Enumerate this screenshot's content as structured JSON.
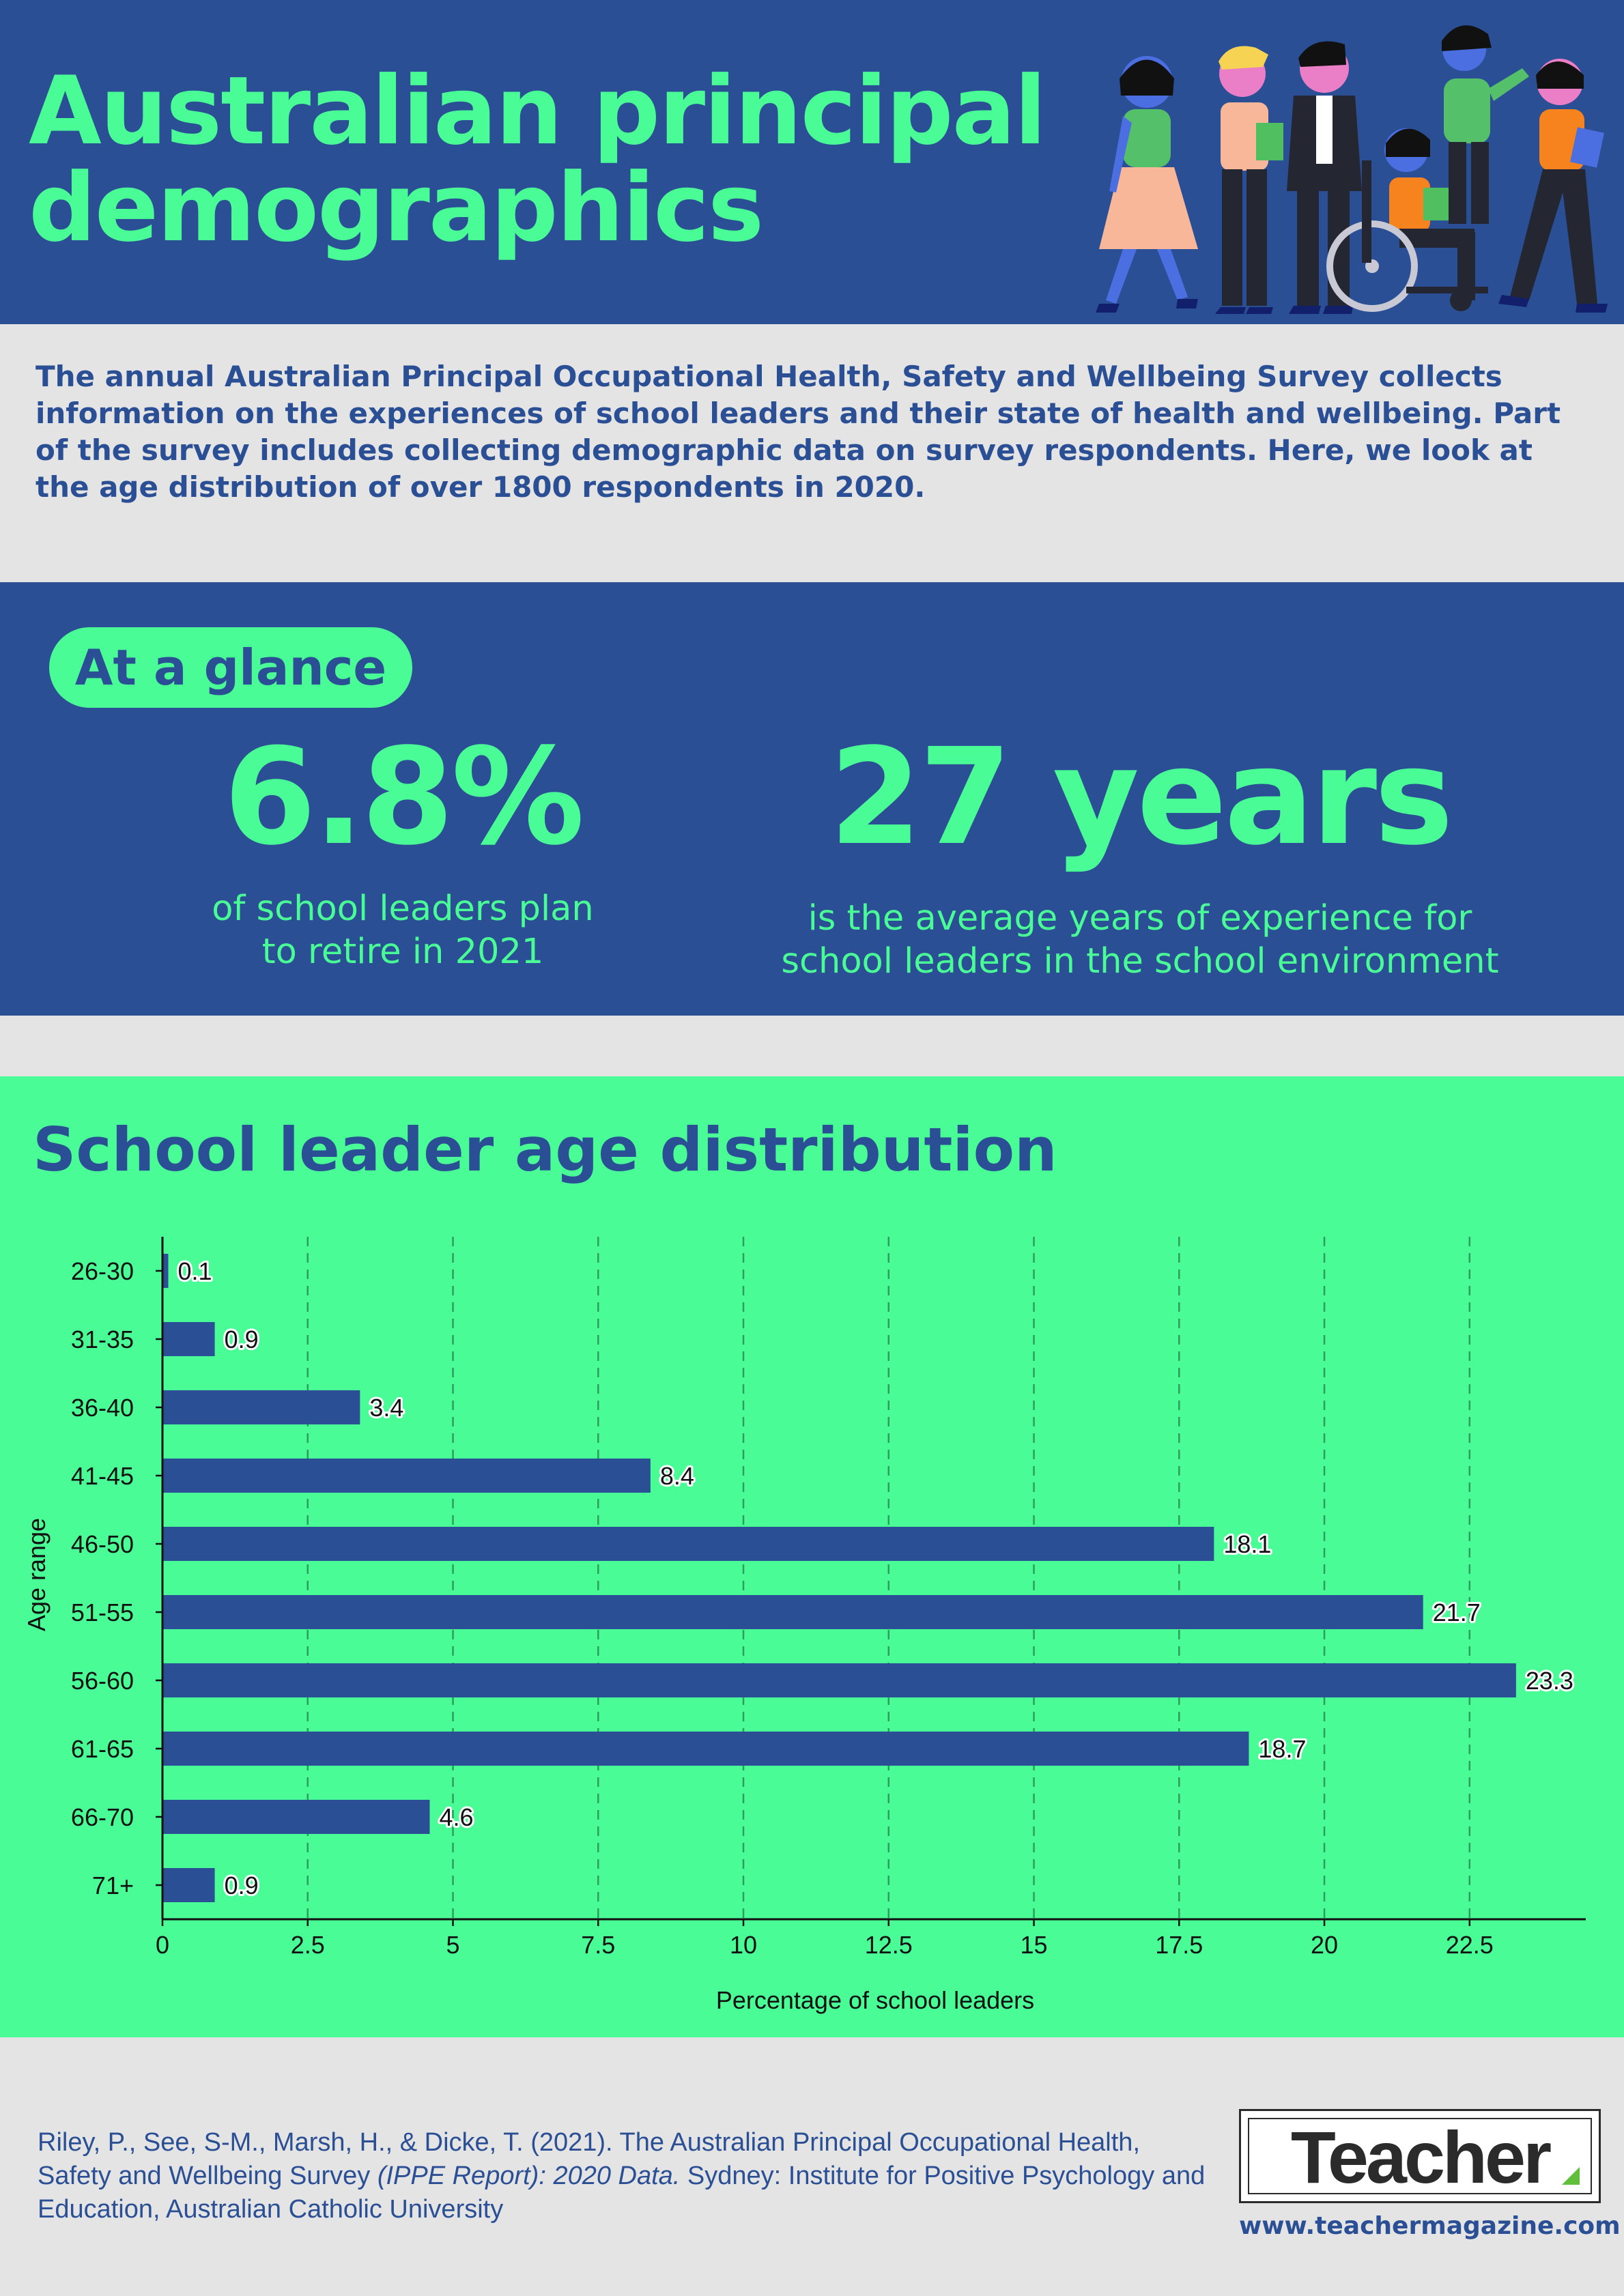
{
  "header": {
    "title_line1": "Australian principal",
    "title_line2": "demographics"
  },
  "intro": {
    "text": "The annual Australian Principal Occupational Health, Safety and Wellbeing Survey collects information on the experiences of school leaders and their state of health and wellbeing. Part of the survey includes collecting demographic data on survey respondents. Here, we look at the age distribution of over 1800 respondents in 2020."
  },
  "glance": {
    "label": "At a glance",
    "stat1": {
      "value": "6.8%",
      "caption_line1": "of school leaders plan",
      "caption_line2": "to retire in 2021"
    },
    "stat2": {
      "value": "27 years",
      "caption_line1": "is the average years of experience for",
      "caption_line2": "school leaders in the school environment"
    }
  },
  "chart": {
    "heading": "School leader age distribution"
  },
  "chart_data": {
    "type": "bar",
    "orientation": "horizontal",
    "title": "School leader age distribution",
    "xlabel": "Percentage of school leaders",
    "ylabel": "Age range",
    "categories": [
      "26-30",
      "31-35",
      "36-40",
      "41-45",
      "46-50",
      "51-55",
      "56-60",
      "61-65",
      "66-70",
      "71+"
    ],
    "values": [
      0.1,
      0.9,
      3.4,
      8.4,
      18.1,
      21.7,
      23.3,
      18.7,
      4.6,
      0.9
    ],
    "value_labels": [
      "0.1",
      "0.9",
      "3.4",
      "8.4",
      "18.1",
      "21.7",
      "23.3",
      "18.7",
      "4.6",
      "0.9"
    ],
    "xticks": [
      0,
      2.5,
      5,
      7.5,
      10,
      12.5,
      15,
      17.5,
      20,
      22.5
    ],
    "xtick_labels": [
      "0",
      "2.5",
      "5",
      "7.5",
      "10",
      "12.5",
      "15",
      "17.5",
      "20",
      "22.5"
    ],
    "xlim": [
      0,
      24.5
    ],
    "grid": "vertical dashed",
    "legend": "none",
    "colors": {
      "bar": "#2b4f94",
      "background": "#4afc96",
      "grid": "#2e9e5c"
    }
  },
  "footer": {
    "citation_part1": "Riley, P., See, S-M., Marsh, H., & Dicke, T. (2021). The Australian Principal Occupational Health, Safety and Wellbeing Survey ",
    "citation_italic": "(IPPE Report): 2020 Data.",
    "citation_part2": " Sydney: Institute for Positive Psychology and Education, Australian Catholic University",
    "logo_text": "Teacher",
    "website": "www.teachermagazine.com"
  },
  "colors": {
    "navy": "#2b4f94",
    "green": "#4afc96",
    "grey": "#e4e4e4"
  }
}
